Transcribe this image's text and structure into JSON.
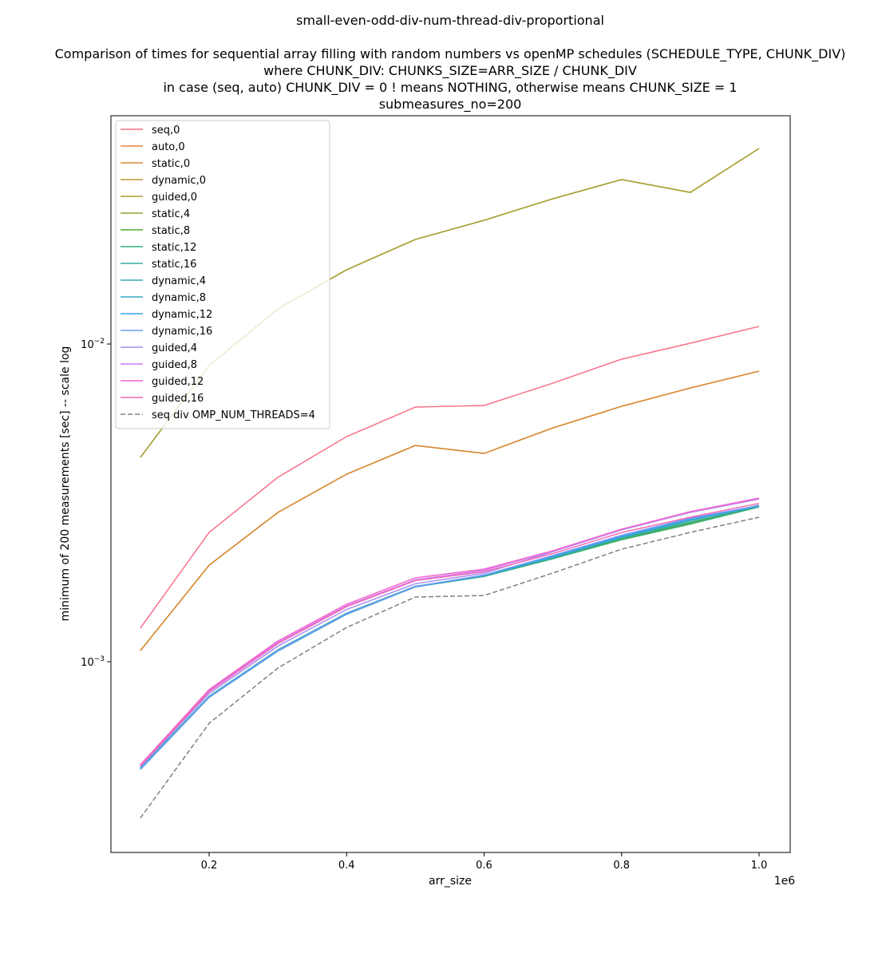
{
  "chart_data": {
    "type": "line",
    "title": "small-even-odd-div-num-thread-div-proportional",
    "subtitle_lines": [
      "Comparison of times for sequential array filling with random numbers vs openMP schedules (SCHEDULE_TYPE, CHUNK_DIV)",
      "where CHUNK_DIV: CHUNKS_SIZE=ARR_SIZE / CHUNK_DIV",
      "in case (seq, auto) CHUNK_DIV = 0 ! means NOTHING, otherwise means CHUNK_SIZE = 1",
      "submeasures_no=200"
    ],
    "xlabel": "arr_size",
    "ylabel": "minimum of 200 measurements  [sec] -- scale log",
    "x_offset_text": "1e6",
    "yscale": "log",
    "legend": "upper left",
    "grid": false,
    "x": [
      100000,
      200000,
      300000,
      400000,
      500000,
      600000,
      700000,
      800000,
      900000,
      1000000
    ],
    "xlim": [
      57200,
      1045300
    ],
    "xticks": [
      {
        "value": 200000,
        "label": "0.2"
      },
      {
        "value": 400000,
        "label": "0.4"
      },
      {
        "value": 600000,
        "label": "0.6"
      },
      {
        "value": 800000,
        "label": "0.8"
      },
      {
        "value": 1000000,
        "label": "1.0"
      }
    ],
    "ylim": [
      0.000251,
      0.0523
    ],
    "yticks": [
      {
        "value": 0.001,
        "label": "10",
        "exponent": "−3"
      },
      {
        "value": 0.01,
        "label": "10",
        "exponent": "−2"
      }
    ],
    "series": [
      {
        "name": "seq,0",
        "color": "#f77189",
        "linestyle": "solid",
        "values": [
          0.001276,
          0.002553,
          0.003805,
          0.005111,
          0.006331,
          0.006405,
          0.007529,
          0.00896,
          0.01006,
          0.01136
        ]
      },
      {
        "name": "auto,0",
        "color": "#e8803f",
        "linestyle": "solid",
        "values": [
          0.001083,
          0.002012,
          0.002948,
          0.003892,
          0.004793,
          0.004523,
          0.005443,
          0.006365,
          0.00727,
          0.008212
        ]
      },
      {
        "name": "static,0",
        "color": "#d58c32",
        "linestyle": "solid",
        "values": [
          0.001084,
          0.002014,
          0.002951,
          0.003895,
          0.004797,
          0.004526,
          0.005446,
          0.006368,
          0.007273,
          0.008215
        ]
      },
      {
        "name": "dynamic,0",
        "color": "#bb9832",
        "linestyle": "solid",
        "values": [
          0.004397,
          0.00855,
          0.0129,
          0.01713,
          0.02134,
          0.02452,
          0.02866,
          0.03294,
          0.03001,
          0.04127
        ]
      },
      {
        "name": "guided,0",
        "color": "#a4a031",
        "linestyle": "solid",
        "values": [
          0.004392,
          0.008545,
          0.01289,
          0.01712,
          0.02133,
          0.02451,
          0.02865,
          0.03293,
          0.03,
          0.04125
        ]
      },
      {
        "name": "static,4",
        "color": "#88a731",
        "linestyle": "solid",
        "values": [
          0.000461,
          0.000775,
          0.001084,
          0.001415,
          0.001722,
          0.001857,
          0.00211,
          0.00243,
          0.00272,
          0.00309
        ]
      },
      {
        "name": "static,8",
        "color": "#4fb031",
        "linestyle": "solid",
        "values": [
          0.000463,
          0.000778,
          0.001088,
          0.00142,
          0.001725,
          0.00186,
          0.00212,
          0.00244,
          0.00274,
          0.00308
        ]
      },
      {
        "name": "static,12",
        "color": "#33b07a",
        "linestyle": "solid",
        "values": [
          0.000462,
          0.000776,
          0.001086,
          0.001418,
          0.00172,
          0.001855,
          0.00211,
          0.00242,
          0.00271,
          0.00307
        ]
      },
      {
        "name": "static,16",
        "color": "#35ad9c",
        "linestyle": "solid",
        "values": [
          0.000464,
          0.000779,
          0.00109,
          0.001422,
          0.001728,
          0.001862,
          0.00213,
          0.00245,
          0.00275,
          0.00309
        ]
      },
      {
        "name": "dynamic,4",
        "color": "#36abae",
        "linestyle": "solid",
        "values": [
          0.000458,
          0.000772,
          0.00108,
          0.00141,
          0.00172,
          0.00186,
          0.00212,
          0.00246,
          0.00278,
          0.00311
        ]
      },
      {
        "name": "dynamic,8",
        "color": "#38a8c5",
        "linestyle": "solid",
        "values": [
          0.00046,
          0.000774,
          0.001083,
          0.001414,
          0.001722,
          0.001865,
          0.00214,
          0.00247,
          0.0028,
          0.0031
        ]
      },
      {
        "name": "dynamic,12",
        "color": "#3ba3ec",
        "linestyle": "solid",
        "values": [
          0.000459,
          0.000773,
          0.001082,
          0.001412,
          0.001721,
          0.00187,
          0.00215,
          0.00248,
          0.00281,
          0.00309
        ]
      },
      {
        "name": "dynamic,16",
        "color": "#6e9bf4",
        "linestyle": "solid",
        "values": [
          0.000461,
          0.000776,
          0.001085,
          0.001416,
          0.001724,
          0.001875,
          0.00216,
          0.0025,
          0.00283,
          0.0031
        ]
      },
      {
        "name": "guided,4",
        "color": "#a48cf4",
        "linestyle": "solid",
        "values": [
          0.000468,
          0.000795,
          0.00112,
          0.00146,
          0.00176,
          0.0019,
          0.00222,
          0.0026,
          0.00295,
          0.00325
        ]
      },
      {
        "name": "guided,8",
        "color": "#cc7af4",
        "linestyle": "solid",
        "values": [
          0.000472,
          0.000812,
          0.00115,
          0.0015,
          0.00181,
          0.00194,
          0.00223,
          0.00261,
          0.00296,
          0.00326
        ]
      },
      {
        "name": "guided,12",
        "color": "#f565cc",
        "linestyle": "solid",
        "values": [
          0.000474,
          0.000817,
          0.001162,
          0.001517,
          0.001836,
          0.001957,
          0.002235,
          0.002613,
          0.002968,
          0.003274
        ]
      },
      {
        "name": "guided,16",
        "color": "#f668b3",
        "linestyle": "solid",
        "values": [
          0.00047,
          0.000805,
          0.00114,
          0.00149,
          0.0018,
          0.00192,
          0.00219,
          0.00255,
          0.00285,
          0.00315
        ]
      },
      {
        "name": "seq div OMP_NUM_THREADS=4",
        "color": "#808080",
        "linestyle": "dashed",
        "values": [
          0.000322,
          0.00064,
          0.000955,
          0.001282,
          0.001598,
          0.001616,
          0.001901,
          0.002261,
          0.002553,
          0.00285
        ]
      }
    ]
  }
}
